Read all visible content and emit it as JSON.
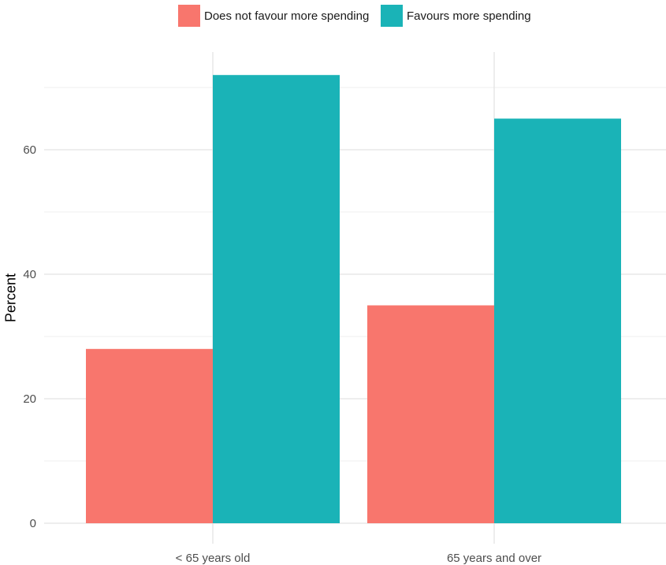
{
  "chart_data": {
    "type": "bar",
    "categories": [
      "< 65 years old",
      "65 years and over"
    ],
    "series": [
      {
        "name": "Does not favour more spending",
        "values": [
          28,
          35
        ],
        "color": "#f8766d"
      },
      {
        "name": "Favours more spending",
        "values": [
          72,
          65
        ],
        "color": "#1ab3b7"
      }
    ],
    "ylabel": "Percent",
    "xlabel": "",
    "ylim": [
      0,
      75
    ],
    "yticks": [
      0,
      20,
      40,
      60
    ],
    "grid": true,
    "legend_position": "top"
  }
}
